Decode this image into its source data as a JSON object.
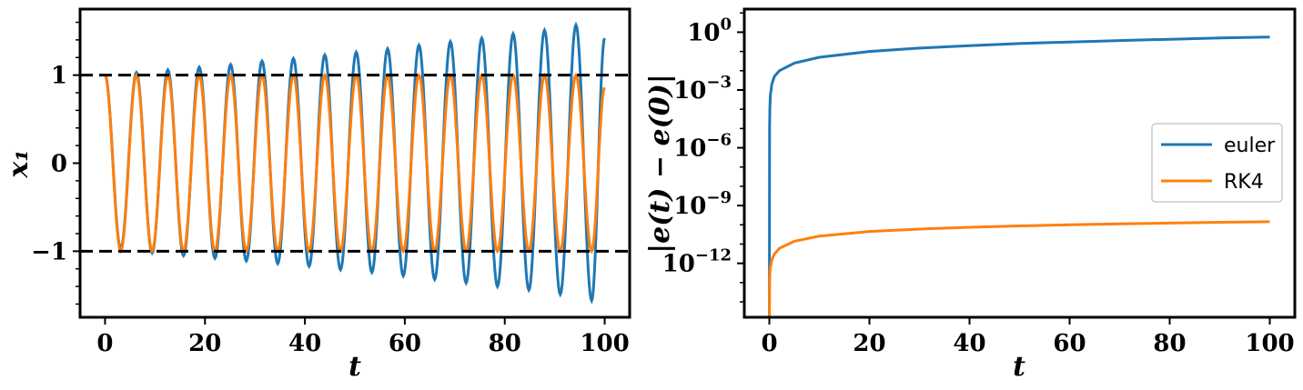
{
  "chart_data": [
    {
      "type": "line",
      "xlabel": "t",
      "ylabel": "x₁",
      "xlim": [
        -5,
        105
      ],
      "ylim": [
        -1.75,
        1.75
      ],
      "xticks": [
        0,
        20,
        40,
        60,
        80,
        100
      ],
      "xtick_labels": [
        "0",
        "20",
        "40",
        "60",
        "80",
        "100"
      ],
      "yticks": [
        1,
        0,
        -1
      ],
      "ytick_labels": [
        "1",
        "0",
        "−1"
      ],
      "reference_lines": [
        1,
        -1
      ],
      "reference_line_style": "black dashed",
      "series": [
        {
          "color": "#1f77b4",
          "description_values": {
            "t_range": [
              0,
              100
            ],
            "oscillation_period": 6.28,
            "initial_value": 1.0,
            "peak_amplitude_at_t100": 1.6
          },
          "x": [
            0,
            3.14,
            6.28,
            9.42,
            12.57,
            15.71,
            18.85,
            21.99,
            25.13,
            28.27,
            31.42,
            34.56,
            37.7,
            40.84,
            43.98,
            47.12,
            50.27,
            53.41,
            56.55,
            59.69,
            62.83,
            65.97,
            69.12,
            72.26,
            75.4,
            78.54,
            81.68,
            84.82,
            87.96,
            91.11,
            94.25,
            97.39,
            100
          ],
          "y": [
            1.0,
            -0.97,
            1.03,
            -1.02,
            1.06,
            -1.05,
            1.09,
            -1.08,
            1.12,
            -1.11,
            1.16,
            -1.14,
            1.19,
            -1.17,
            1.23,
            -1.21,
            1.26,
            -1.24,
            1.3,
            -1.28,
            1.34,
            -1.32,
            1.38,
            -1.36,
            1.42,
            -1.4,
            1.47,
            -1.44,
            1.51,
            -1.49,
            1.57,
            -1.56,
            1.42
          ]
        },
        {
          "color": "#ff7f0e",
          "x": [
            0,
            3.14,
            6.28,
            9.42,
            12.57,
            15.71,
            18.85,
            21.99,
            25.13,
            28.27,
            31.42,
            34.56,
            37.7,
            40.84,
            43.98,
            47.12,
            50.27,
            53.41,
            56.55,
            59.69,
            62.83,
            65.97,
            69.12,
            72.26,
            75.4,
            78.54,
            81.68,
            84.82,
            87.96,
            91.11,
            94.25,
            97.39,
            100
          ],
          "y": [
            1.0,
            -1.0,
            1.0,
            -1.0,
            1.0,
            -1.0,
            1.0,
            -1.0,
            1.0,
            -1.0,
            1.0,
            -1.0,
            1.0,
            -1.0,
            1.0,
            -1.0,
            1.0,
            -1.0,
            1.0,
            -1.0,
            1.0,
            -1.0,
            1.0,
            -1.0,
            1.0,
            -1.0,
            1.0,
            -1.0,
            1.0,
            -1.0,
            1.0,
            -1.0,
            0.86
          ]
        }
      ],
      "grid": false
    },
    {
      "type": "line",
      "xlabel": "t",
      "ylabel": "|e(t) − e(0)|",
      "yscale": "log",
      "xlim": [
        -5,
        105
      ],
      "ylim_log10": [
        -14.8,
        1.2
      ],
      "xticks": [
        0,
        20,
        40,
        60,
        80,
        100
      ],
      "xtick_labels": [
        "0",
        "20",
        "40",
        "60",
        "80",
        "100"
      ],
      "yticks_log10": [
        0,
        -3,
        -6,
        -9,
        -12
      ],
      "ytick_bases": [
        "10",
        "10",
        "10",
        "10",
        "10"
      ],
      "ytick_exponents": [
        "0",
        "−3",
        "−6",
        "−9",
        "−12"
      ],
      "legend_placement": "center-right",
      "series": [
        {
          "name": "euler",
          "color": "#1f77b4",
          "x": [
            0.01,
            0.05,
            0.1,
            0.2,
            0.5,
            1,
            2,
            5,
            10,
            20,
            30,
            40,
            50,
            60,
            70,
            80,
            90,
            100
          ],
          "y": [
            1e-16,
            1e-05,
            0.0001,
            0.0005,
            0.002,
            0.005,
            0.01,
            0.025,
            0.05,
            0.1,
            0.15,
            0.2,
            0.26,
            0.31,
            0.37,
            0.43,
            0.5,
            0.56
          ]
        },
        {
          "name": "RK4",
          "color": "#ff7f0e",
          "x": [
            0.01,
            0.05,
            0.1,
            0.2,
            0.5,
            1,
            2,
            5,
            10,
            20,
            30,
            40,
            50,
            60,
            70,
            80,
            90,
            100
          ],
          "y": [
            1e-16,
            1e-13,
            3e-13,
            6e-13,
            1.5e-12,
            3e-12,
            6e-12,
            1.4e-11,
            2.6e-11,
            4.5e-11,
            6e-11,
            7.5e-11,
            8.8e-11,
            1e-10,
            1.12e-10,
            1.24e-10,
            1.35e-10,
            1.45e-10
          ]
        }
      ],
      "grid": false
    }
  ]
}
